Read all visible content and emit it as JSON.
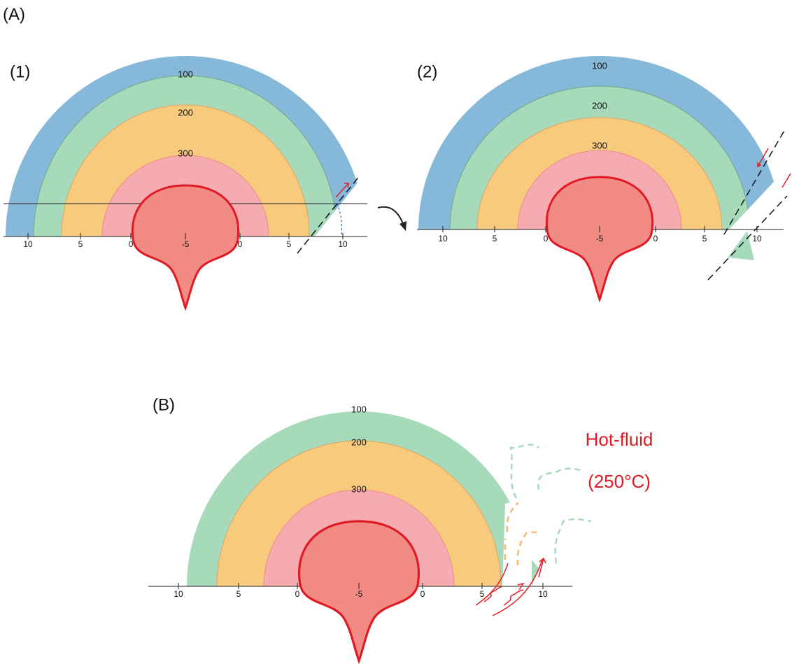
{
  "panel_a": {
    "label": "(A)",
    "sub1": {
      "label": "(1)",
      "isotherms": [
        "100",
        "200",
        "300"
      ],
      "axis_labels": [
        "10",
        "5",
        "0",
        "-5",
        "0",
        "5",
        "10"
      ]
    },
    "sub2": {
      "label": "(2)",
      "isotherms": [
        "100",
        "200",
        "300"
      ],
      "axis_labels": [
        "10",
        "5",
        "0",
        "-5",
        "0",
        "5",
        "10"
      ]
    }
  },
  "panel_b": {
    "label": "(B)",
    "isotherms": [
      "100",
      "200",
      "300"
    ],
    "axis_labels": [
      "10",
      "5",
      "0",
      "-5",
      "0",
      "5",
      "10"
    ],
    "annotation": [
      "Hot-fluid",
      "(250°C)"
    ]
  }
}
